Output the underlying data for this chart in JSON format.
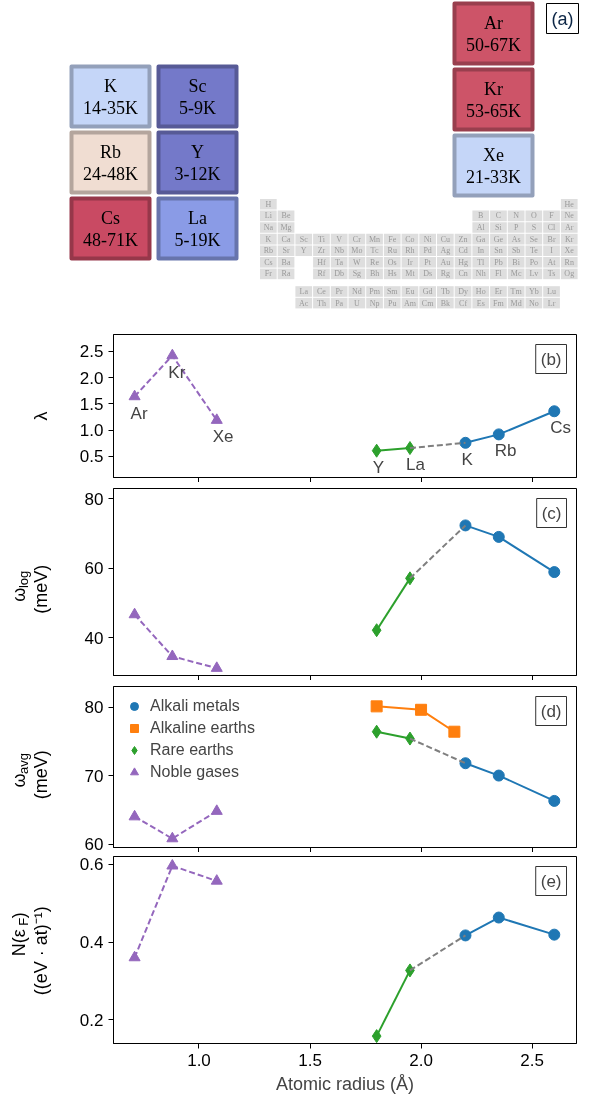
{
  "chart_data": [
    {
      "type": "other",
      "title": "(a)",
      "annotations": [
        "K\n14-35K",
        "Rb\n24-48K",
        "Cs\n48-71K",
        "Sc\n5-9K",
        "Y\n3-12K",
        "La\n5-19K",
        "Ar\n50-67K",
        "Kr\n53-65K",
        "Xe\n21-33K"
      ],
      "colors": [
        "#c5d6f8",
        "#f0ddd2",
        "#c94a63",
        "#7479c9",
        "#7479c9",
        "#8a9be6",
        "#cd5468",
        "#cd5468",
        "#c5d6f8"
      ],
      "cell_labels": [
        [
          "H",
          null,
          null,
          null,
          null,
          null,
          null,
          null,
          null,
          null,
          null,
          null,
          null,
          null,
          null,
          null,
          null,
          "He"
        ],
        [
          "Li",
          "Be",
          null,
          null,
          null,
          null,
          null,
          null,
          null,
          null,
          null,
          null,
          "B",
          "C",
          "N",
          "O",
          "F",
          "Ne"
        ],
        [
          "Na",
          "Mg",
          null,
          null,
          null,
          null,
          null,
          null,
          null,
          null,
          null,
          null,
          "Al",
          "Si",
          "P",
          "S",
          "Cl",
          "Ar"
        ],
        [
          "K",
          "Ca",
          "Sc",
          "Ti",
          "V",
          "Cr",
          "Mn",
          "Fe",
          "Co",
          "Ni",
          "Cu",
          "Zn",
          "Ga",
          "Ge",
          "As",
          "Se",
          "Br",
          "Kr"
        ],
        [
          "Rb",
          "Sr",
          "Y",
          "Zr",
          "Nb",
          "Mo",
          "Tc",
          "Ru",
          "Rh",
          "Pd",
          "Ag",
          "Cd",
          "In",
          "Sn",
          "Sb",
          "Te",
          "I",
          "Xe"
        ],
        [
          "Cs",
          "Ba",
          null,
          "Hf",
          "Ta",
          "W",
          "Re",
          "Os",
          "Ir",
          "Pt",
          "Au",
          "Hg",
          "Tl",
          "Pb",
          "Bi",
          "Po",
          "At",
          "Rn"
        ],
        [
          "Fr",
          "Ra",
          null,
          "Rf",
          "Db",
          "Sg",
          "Bh",
          "Hs",
          "Mt",
          "Ds",
          "Rg",
          "Cn",
          "Nh",
          "Fl",
          "Mc",
          "Lv",
          "Ts",
          "Og"
        ],
        [
          null,
          null,
          "La",
          "Ce",
          "Pr",
          "Nd",
          "Pm",
          "Sm",
          "Eu",
          "Gd",
          "Tb",
          "Dy",
          "Ho",
          "Er",
          "Tm",
          "Yb",
          "Lu",
          null
        ],
        [
          null,
          null,
          "Ac",
          "Th",
          "Pa",
          "U",
          "Np",
          "Pu",
          "Am",
          "Cm",
          "Bk",
          "Cf",
          "Es",
          "Fm",
          "Md",
          "No",
          "Lr",
          null
        ]
      ]
    },
    {
      "type": "line",
      "title": "(b)",
      "ylabel": "λ",
      "tick_labels": "y",
      "xlim": [
        0.615,
        2.7
      ],
      "xticks": [
        {
          "value": 1,
          "label": null
        },
        {
          "value": 1.5,
          "label": null
        },
        {
          "value": 2,
          "label": null
        },
        {
          "value": 2.5,
          "label": null
        }
      ],
      "ylim": [
        0.1,
        2.82
      ],
      "yticks": [
        0.5,
        {
          "value": 1,
          "label": "1.0"
        },
        1.5,
        {
          "value": 2,
          "label": "2.0"
        },
        2.5
      ],
      "series": [
        {
          "color": "#1f77b4",
          "marker": "circle",
          "line_style": "solid",
          "x": [
            2.2,
            2.35,
            2.6
          ],
          "values": [
            0.76,
            0.92,
            1.36
          ]
        },
        {
          "color": "#2ca02c",
          "marker": "diamond",
          "line_style": "solid",
          "x": [
            1.8,
            1.95
          ],
          "values": [
            0.61,
            0.66
          ]
        },
        {
          "color": "#7f7f7f",
          "marker": "none",
          "line_style": "dashed",
          "x": [
            1.95,
            2.2
          ],
          "values": [
            0.66,
            0.76
          ]
        },
        {
          "color": "#9467bd",
          "marker": "triangle",
          "line_style": "dashed",
          "x": [
            0.71,
            0.88,
            1.08
          ],
          "values": [
            1.64,
            2.42,
            1.19
          ]
        }
      ],
      "annotations": [
        {
          "text": "Ar",
          "x": 0.71,
          "y": 1.64
        },
        {
          "text": "Kr",
          "x": 0.88,
          "y": 2.42
        },
        {
          "text": "Xe",
          "x": 1.08,
          "y": 1.19
        },
        {
          "text": "Y",
          "x": 1.8,
          "y": 0.61
        },
        {
          "text": "La",
          "x": 1.95,
          "y": 0.66
        },
        {
          "text": "K",
          "x": 2.2,
          "y": 0.76
        },
        {
          "text": "Rb",
          "x": 2.35,
          "y": 0.92
        },
        {
          "text": "Cs",
          "x": 2.6,
          "y": 1.36
        }
      ]
    },
    {
      "type": "line",
      "title": "(c)",
      "ylabel": "ω$_{log}$\n(meV)",
      "tick_labels": "y",
      "xlim": [
        0.615,
        2.7
      ],
      "xticks": [
        {
          "value": 1,
          "label": null
        },
        {
          "value": 1.5,
          "label": null
        },
        {
          "value": 2,
          "label": null
        },
        {
          "value": 2.5,
          "label": null
        }
      ],
      "ylim": [
        29.2,
        82.9
      ],
      "yticks": [
        40,
        60,
        80
      ],
      "series": [
        {
          "color": "#1f77b4",
          "marker": "circle",
          "line_style": "solid",
          "x": [
            2.2,
            2.35,
            2.6
          ],
          "values": [
            72.3,
            69.0,
            58.9
          ]
        },
        {
          "color": "#2ca02c",
          "marker": "diamond",
          "line_style": "solid",
          "x": [
            1.8,
            1.95
          ],
          "values": [
            42.2,
            57.1
          ]
        },
        {
          "color": "#7f7f7f",
          "marker": "none",
          "line_style": "dashed",
          "x": [
            1.95,
            2.2
          ],
          "values": [
            57.1,
            72.3
          ]
        },
        {
          "color": "#9467bd",
          "marker": "triangle",
          "line_style": "dashed",
          "x": [
            0.71,
            0.88,
            1.08
          ],
          "values": [
            46.7,
            34.7,
            31.3
          ]
        }
      ]
    },
    {
      "type": "line",
      "title": "(d)",
      "ylabel": "ω$_{avg}$\n(meV)",
      "tick_labels": "y",
      "legend": "top left",
      "xlim": [
        0.615,
        2.7
      ],
      "xticks": [
        {
          "value": 1,
          "label": null
        },
        {
          "value": 1.5,
          "label": null
        },
        {
          "value": 2,
          "label": null
        },
        {
          "value": 2.5,
          "label": null
        }
      ],
      "ylim": [
        59.5,
        83.0
      ],
      "yticks": [
        60,
        70,
        80
      ],
      "series": [
        {
          "name": "Alkali metals",
          "color": "#1f77b4",
          "marker": "circle",
          "line_style": "solid",
          "x": [
            2.2,
            2.35,
            2.6
          ],
          "values": [
            71.8,
            70.0,
            66.3
          ]
        },
        {
          "name": "Alkaline earths",
          "color": "#ff7f0e",
          "marker": "square",
          "line_style": "solid",
          "x": [
            1.8,
            2.0,
            2.15
          ],
          "values": [
            80.1,
            79.6,
            76.4
          ]
        },
        {
          "name": "Rare earths",
          "color": "#2ca02c",
          "marker": "diamond",
          "line_style": "solid",
          "x": [
            1.8,
            1.95
          ],
          "values": [
            76.4,
            75.4
          ]
        },
        {
          "color": "#7f7f7f",
          "marker": "none",
          "line_style": "dashed",
          "x": [
            1.95,
            2.2
          ],
          "values": [
            75.4,
            71.8
          ]
        },
        {
          "name": "Noble gases",
          "color": "#9467bd",
          "marker": "triangle",
          "line_style": "dashed",
          "x": [
            0.71,
            0.88,
            1.08
          ],
          "values": [
            64.0,
            60.8,
            64.8
          ]
        }
      ]
    },
    {
      "type": "line",
      "title": "(e)",
      "ylabel": "N(ε$_{F}$)\n((eV · at)⁻¹)",
      "xlabel": "Atomic radius (Å)",
      "xlim": [
        0.615,
        2.7
      ],
      "xticks": [
        {
          "value": 1,
          "label": "1.0"
        },
        1.5,
        {
          "value": 2,
          "label": "2.0"
        },
        2.5
      ],
      "ylim": [
        0.139,
        0.62
      ],
      "yticks": [
        0.2,
        0.4,
        0.6
      ],
      "series": [
        {
          "color": "#1f77b4",
          "marker": "circle",
          "line_style": "solid",
          "x": [
            2.2,
            2.35,
            2.6
          ],
          "values": [
            0.417,
            0.463,
            0.419
          ]
        },
        {
          "color": "#2ca02c",
          "marker": "diamond",
          "line_style": "solid",
          "x": [
            1.8,
            1.95
          ],
          "values": [
            0.158,
            0.327
          ]
        },
        {
          "color": "#7f7f7f",
          "marker": "none",
          "line_style": "dashed",
          "x": [
            1.95,
            2.2
          ],
          "values": [
            0.327,
            0.417
          ]
        },
        {
          "color": "#9467bd",
          "marker": "triangle",
          "line_style": "dashed",
          "x": [
            0.71,
            0.88,
            1.08
          ],
          "values": [
            0.36,
            0.596,
            0.557
          ]
        }
      ]
    }
  ]
}
